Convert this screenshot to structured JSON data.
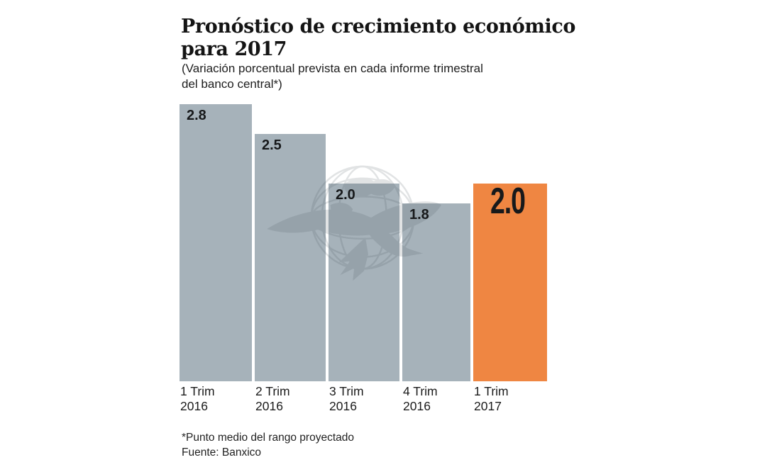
{
  "header": {
    "title": "Pronóstico de crecimiento económico\npara 2017",
    "subtitle": "(Variación porcentual prevista en cada informe trimestral\ndel banco central*)"
  },
  "chart_data": {
    "type": "bar",
    "title": "Pronóstico de crecimiento económico para 2017",
    "subtitle": "Variación porcentual prevista en cada informe trimestral del banco central (punto medio del rango proyectado)",
    "categories": [
      "1 Trim\n2016",
      "2 Trim\n2016",
      "3 Trim\n2016",
      "4 Trim\n2016",
      "1 Trim\n2017"
    ],
    "values": [
      2.8,
      2.5,
      2.0,
      1.8,
      2.0
    ],
    "labels": [
      "2.8",
      "2.5",
      "2.0",
      "1.8",
      "2.0"
    ],
    "highlight_index": 4,
    "bar_color": "#a6b2ba",
    "highlight_color": "#ef8642",
    "value_label_color": "#17191b",
    "xlabel": "",
    "ylabel": "",
    "ylim": [
      0,
      2.8
    ],
    "grid": false,
    "legend": false
  },
  "footer": {
    "note": "*Punto medio del rango proyectado",
    "source": "Fuente: Banxico"
  },
  "watermark": {
    "name": "eagle-globe-news-logo",
    "color": "#4a565e",
    "opacity": 0.16
  }
}
